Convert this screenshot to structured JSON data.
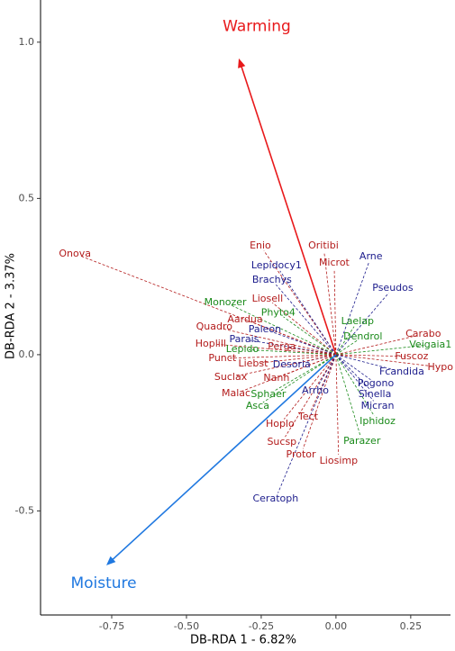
{
  "chart_data": {
    "type": "biplot",
    "x_label": "DB-RDA 1 - 6.82%",
    "y_label": "DB-RDA 2 - 3.37%",
    "xlim": [
      -0.988,
      0.383
    ],
    "ylim": [
      -0.833,
      1.135
    ],
    "xticks": [
      {
        "value": -0.75,
        "label": "-0.75"
      },
      {
        "value": -0.5,
        "label": "-0.50"
      },
      {
        "value": -0.25,
        "label": "-0.25"
      },
      {
        "value": 0,
        "label": "0.00"
      },
      {
        "value": 0.25,
        "label": "0.25"
      }
    ],
    "yticks": [
      {
        "value": 1,
        "label": "1.0"
      },
      0.5,
      {
        "value": 0,
        "label": "0.0"
      },
      -0.5
    ],
    "grid": false,
    "vectors": [
      {
        "label": "Warming",
        "x": -0.325,
        "y": 0.948,
        "label_x": -0.265,
        "label_y": 1.05,
        "color": "#e8191b"
      },
      {
        "label": "Moisture",
        "x": -0.768,
        "y": -0.674,
        "label_x": -0.777,
        "label_y": -0.732,
        "color": "#1f78e0"
      }
    ],
    "points": [
      {
        "label": "Onova",
        "x": -0.873,
        "y": 0.323,
        "color": "#b31b1b"
      },
      {
        "label": "Enio",
        "x": -0.253,
        "y": 0.349,
        "color": "#b31b1b"
      },
      {
        "label": "Oritibi",
        "x": -0.042,
        "y": 0.349,
        "color": "#b31b1b"
      },
      {
        "label": "Arne",
        "x": 0.117,
        "y": 0.314,
        "color": "#1c1c8c"
      },
      {
        "label": "Microt",
        "x": -0.006,
        "y": 0.294,
        "color": "#b31b1b"
      },
      {
        "label": "Lepidocy1",
        "x": -0.199,
        "y": 0.285,
        "color": "#1c1c8c"
      },
      {
        "label": "Brachys",
        "x": -0.214,
        "y": 0.239,
        "color": "#1c1c8c"
      },
      {
        "label": "Pseudos",
        "x": 0.19,
        "y": 0.213,
        "color": "#1c1c8c"
      },
      {
        "label": "Monozer",
        "x": -0.37,
        "y": 0.167,
        "color": "#1a8a1a"
      },
      {
        "label": "Liosell",
        "x": -0.229,
        "y": 0.179,
        "color": "#b31b1b"
      },
      {
        "label": "Phyto4",
        "x": -0.193,
        "y": 0.133,
        "color": "#1a8a1a"
      },
      {
        "label": "Laelap",
        "x": 0.072,
        "y": 0.107,
        "color": "#1a8a1a"
      },
      {
        "label": "Quadro",
        "x": -0.407,
        "y": 0.089,
        "color": "#b31b1b"
      },
      {
        "label": "Aardua",
        "x": -0.304,
        "y": 0.112,
        "color": "#b31b1b"
      },
      {
        "label": "Paleon",
        "x": -0.238,
        "y": 0.081,
        "color": "#1c1c8c"
      },
      {
        "label": "Carabo",
        "x": 0.292,
        "y": 0.066,
        "color": "#b31b1b"
      },
      {
        "label": "Dendrol",
        "x": 0.09,
        "y": 0.058,
        "color": "#1a8a1a"
      },
      {
        "label": "Parais",
        "x": -0.307,
        "y": 0.049,
        "color": "#1c1c8c"
      },
      {
        "label": "Veigaia1",
        "x": 0.316,
        "y": 0.032,
        "color": "#1a8a1a"
      },
      {
        "label": "Hoplill",
        "x": -0.419,
        "y": 0.035,
        "color": "#b31b1b"
      },
      {
        "label": "Lepido",
        "x": -0.313,
        "y": 0.017,
        "color": "#1a8a1a"
      },
      {
        "label": "Perga",
        "x": -0.181,
        "y": 0.026,
        "color": "#b31b1b"
      },
      {
        "label": "Fuscoz",
        "x": 0.253,
        "y": -0.006,
        "color": "#b31b1b"
      },
      {
        "label": "Punct",
        "x": -0.38,
        "y": -0.012,
        "color": "#b31b1b"
      },
      {
        "label": "Liebst",
        "x": -0.277,
        "y": -0.029,
        "color": "#b31b1b"
      },
      {
        "label": "Desoria",
        "x": -0.148,
        "y": -0.032,
        "color": "#1c1c8c"
      },
      {
        "label": "Hypo",
        "x": 0.349,
        "y": -0.04,
        "color": "#b31b1b"
      },
      {
        "label": "Fcandida",
        "x": 0.22,
        "y": -0.055,
        "color": "#1c1c8c"
      },
      {
        "label": "Suclax",
        "x": -0.352,
        "y": -0.072,
        "color": "#b31b1b"
      },
      {
        "label": "Nanh",
        "x": -0.199,
        "y": -0.075,
        "color": "#b31b1b"
      },
      {
        "label": "Pogono",
        "x": 0.133,
        "y": -0.092,
        "color": "#1c1c8c"
      },
      {
        "label": "Malac",
        "x": -0.334,
        "y": -0.124,
        "color": "#b31b1b"
      },
      {
        "label": "Sphaer",
        "x": -0.226,
        "y": -0.127,
        "color": "#1a8a1a"
      },
      {
        "label": "Arrho",
        "x": -0.069,
        "y": -0.115,
        "color": "#1c1c8c"
      },
      {
        "label": "Sinella",
        "x": 0.13,
        "y": -0.127,
        "color": "#1c1c8c"
      },
      {
        "label": "Asca",
        "x": -0.262,
        "y": -0.164,
        "color": "#1a8a1a"
      },
      {
        "label": "Micran",
        "x": 0.139,
        "y": -0.164,
        "color": "#1c1c8c"
      },
      {
        "label": "Tect",
        "x": -0.093,
        "y": -0.199,
        "color": "#b31b1b"
      },
      {
        "label": "Iphidoz",
        "x": 0.139,
        "y": -0.213,
        "color": "#1a8a1a"
      },
      {
        "label": "Hoplo",
        "x": -0.187,
        "y": -0.222,
        "color": "#b31b1b"
      },
      {
        "label": "Sucsp",
        "x": -0.181,
        "y": -0.28,
        "color": "#b31b1b"
      },
      {
        "label": "Parazer",
        "x": 0.087,
        "y": -0.277,
        "color": "#1a8a1a"
      },
      {
        "label": "Protor",
        "x": -0.117,
        "y": -0.32,
        "color": "#b31b1b"
      },
      {
        "label": "Liosimp",
        "x": 0.009,
        "y": -0.34,
        "color": "#b31b1b"
      },
      {
        "label": "Ceratoph",
        "x": -0.202,
        "y": -0.461,
        "color": "#1c1c8c"
      }
    ]
  }
}
